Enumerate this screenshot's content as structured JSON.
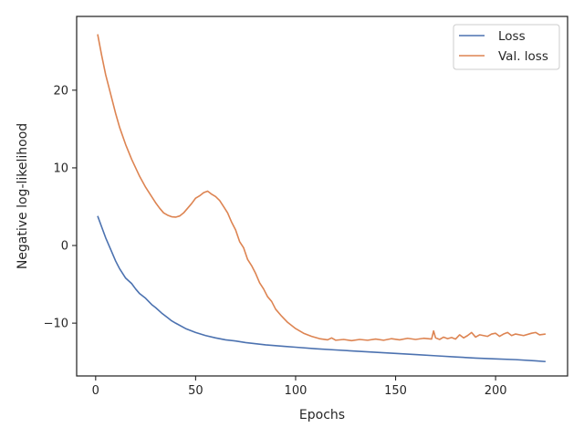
{
  "chart_data": {
    "type": "line",
    "xlabel": "Epochs",
    "ylabel": "Negative log-likelihood",
    "xlim": [
      -9.5,
      236
    ],
    "ylim": [
      -16.8,
      29.5
    ],
    "xticks": [
      0,
      50,
      100,
      150,
      200
    ],
    "yticks": [
      -10,
      0,
      10,
      20
    ],
    "xtick_labels": [
      "0",
      "50",
      "100",
      "150",
      "200"
    ],
    "ytick_labels": [
      "−10",
      "0",
      "10",
      "20"
    ],
    "grid": false,
    "legend_position": "top-right",
    "series": [
      {
        "name": "Loss",
        "color": "#4c72b0",
        "points": [
          [
            1,
            3.8
          ],
          [
            3,
            2.4
          ],
          [
            5,
            1.0
          ],
          [
            8,
            -0.8
          ],
          [
            10,
            -2.0
          ],
          [
            12,
            -3.0
          ],
          [
            15,
            -4.2
          ],
          [
            18,
            -4.9
          ],
          [
            20,
            -5.6
          ],
          [
            22,
            -6.2
          ],
          [
            25,
            -6.8
          ],
          [
            28,
            -7.6
          ],
          [
            30,
            -8.0
          ],
          [
            33,
            -8.7
          ],
          [
            36,
            -9.3
          ],
          [
            38,
            -9.7
          ],
          [
            40,
            -10.0
          ],
          [
            45,
            -10.7
          ],
          [
            50,
            -11.2
          ],
          [
            55,
            -11.6
          ],
          [
            60,
            -11.9
          ],
          [
            65,
            -12.15
          ],
          [
            70,
            -12.3
          ],
          [
            75,
            -12.5
          ],
          [
            80,
            -12.65
          ],
          [
            85,
            -12.8
          ],
          [
            90,
            -12.9
          ],
          [
            95,
            -13.0
          ],
          [
            100,
            -13.1
          ],
          [
            110,
            -13.3
          ],
          [
            120,
            -13.45
          ],
          [
            130,
            -13.6
          ],
          [
            140,
            -13.75
          ],
          [
            150,
            -13.9
          ],
          [
            160,
            -14.05
          ],
          [
            170,
            -14.2
          ],
          [
            180,
            -14.35
          ],
          [
            190,
            -14.5
          ],
          [
            200,
            -14.6
          ],
          [
            210,
            -14.7
          ],
          [
            220,
            -14.85
          ],
          [
            225,
            -14.95
          ]
        ]
      },
      {
        "name": "Val. loss",
        "color": "#dd8452",
        "points": [
          [
            1,
            27.2
          ],
          [
            3,
            24.5
          ],
          [
            5,
            22.0
          ],
          [
            8,
            19.0
          ],
          [
            10,
            17.0
          ],
          [
            12,
            15.2
          ],
          [
            15,
            13.0
          ],
          [
            18,
            11.1
          ],
          [
            20,
            10.0
          ],
          [
            22,
            8.9
          ],
          [
            25,
            7.5
          ],
          [
            28,
            6.3
          ],
          [
            30,
            5.5
          ],
          [
            32,
            4.8
          ],
          [
            34,
            4.2
          ],
          [
            36,
            3.9
          ],
          [
            38,
            3.7
          ],
          [
            40,
            3.65
          ],
          [
            42,
            3.8
          ],
          [
            44,
            4.2
          ],
          [
            46,
            4.8
          ],
          [
            48,
            5.4
          ],
          [
            50,
            6.1
          ],
          [
            52,
            6.4
          ],
          [
            54,
            6.8
          ],
          [
            56,
            7.0
          ],
          [
            57,
            6.8
          ],
          [
            58,
            6.6
          ],
          [
            60,
            6.3
          ],
          [
            62,
            5.8
          ],
          [
            64,
            5.0
          ],
          [
            66,
            4.2
          ],
          [
            68,
            3.0
          ],
          [
            70,
            2.0
          ],
          [
            72,
            0.5
          ],
          [
            74,
            -0.3
          ],
          [
            76,
            -1.8
          ],
          [
            78,
            -2.6
          ],
          [
            80,
            -3.6
          ],
          [
            82,
            -4.8
          ],
          [
            84,
            -5.6
          ],
          [
            86,
            -6.6
          ],
          [
            88,
            -7.2
          ],
          [
            90,
            -8.2
          ],
          [
            93,
            -9.1
          ],
          [
            96,
            -9.9
          ],
          [
            100,
            -10.7
          ],
          [
            104,
            -11.3
          ],
          [
            108,
            -11.7
          ],
          [
            112,
            -12.0
          ],
          [
            116,
            -12.15
          ],
          [
            118,
            -11.9
          ],
          [
            120,
            -12.2
          ],
          [
            124,
            -12.1
          ],
          [
            128,
            -12.25
          ],
          [
            132,
            -12.1
          ],
          [
            136,
            -12.2
          ],
          [
            140,
            -12.05
          ],
          [
            144,
            -12.2
          ],
          [
            148,
            -12.0
          ],
          [
            152,
            -12.15
          ],
          [
            156,
            -11.95
          ],
          [
            160,
            -12.1
          ],
          [
            164,
            -11.95
          ],
          [
            168,
            -12.05
          ],
          [
            169,
            -11.0
          ],
          [
            170,
            -11.9
          ],
          [
            172,
            -12.1
          ],
          [
            174,
            -11.8
          ],
          [
            176,
            -12.0
          ],
          [
            178,
            -11.85
          ],
          [
            180,
            -12.05
          ],
          [
            182,
            -11.5
          ],
          [
            184,
            -11.9
          ],
          [
            186,
            -11.6
          ],
          [
            188,
            -11.2
          ],
          [
            190,
            -11.8
          ],
          [
            192,
            -11.5
          ],
          [
            196,
            -11.7
          ],
          [
            198,
            -11.4
          ],
          [
            200,
            -11.3
          ],
          [
            202,
            -11.7
          ],
          [
            204,
            -11.4
          ],
          [
            206,
            -11.2
          ],
          [
            208,
            -11.6
          ],
          [
            210,
            -11.4
          ],
          [
            214,
            -11.6
          ],
          [
            218,
            -11.3
          ],
          [
            220,
            -11.2
          ],
          [
            222,
            -11.5
          ],
          [
            225,
            -11.4
          ]
        ]
      }
    ]
  }
}
